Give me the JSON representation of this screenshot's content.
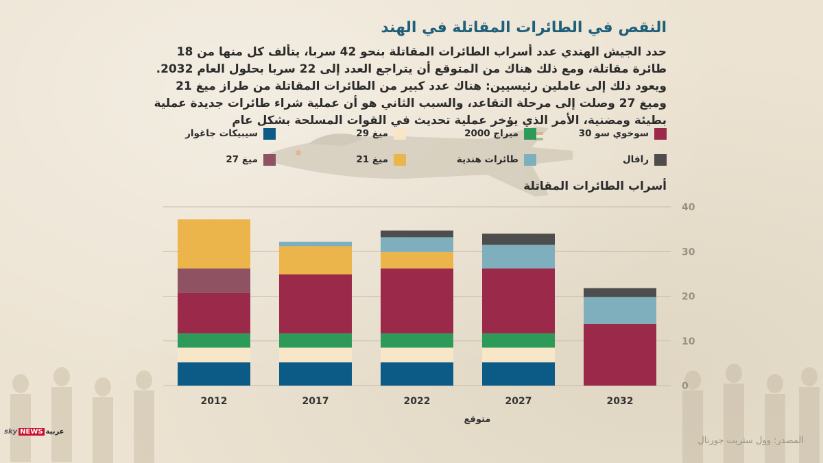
{
  "header": {
    "title": "النقص في الطائرات المقاتلة في الهند",
    "description": "حدد الجيش الهندي عدد أسراب الطائرات المقاتلة بنحو 42 سربا، يتألف كل منها من 18 طائرة مقاتلة، ومع ذلك هناك من المتوقع أن يتراجع العدد إلى 22 سربا بحلول العام 2032. ويعود ذلك إلى عاملين رئيسيين: هناك عدد كبير من الطائرات المقاتلة من طراز ميغ 21 وميغ 27 وصلت إلى مرحلة التقاعد، والسبب الثاني هو أن عملية شراء طائرات جديدة عملية بطيئة ومضنية، الأمر الذي يؤخر عملية تحديث في القوات المسلحة بشكل عام"
  },
  "legend": [
    {
      "label": "سوخوي سو 30",
      "color": "#9b2a4a"
    },
    {
      "label": "ميراج 2000",
      "color": "#2e9a5a"
    },
    {
      "label": "ميغ 29",
      "color": "#f7e6c8"
    },
    {
      "label": "سيبيكات جاغوار",
      "color": "#0c5a86"
    },
    {
      "label": "رافال",
      "color": "#4d4d4d"
    },
    {
      "label": "طائرات هندية",
      "color": "#7fafbd"
    },
    {
      "label": "ميغ 21",
      "color": "#ebb54b"
    },
    {
      "label": "ميغ 27",
      "color": "#8e5262"
    }
  ],
  "chart_data": {
    "type": "bar",
    "stacked": true,
    "title": "أسراب الطائرات المقاتلة",
    "categories": [
      "2012",
      "2017",
      "2022",
      "2027",
      "2032"
    ],
    "x_annotation": {
      "text": "متوقع",
      "applies_to": [
        "2027"
      ]
    },
    "ylim": [
      0,
      40
    ],
    "yticks": [
      0,
      10,
      20,
      30,
      40
    ],
    "grid": true,
    "series": [
      {
        "name": "سيبيكات جاغوار",
        "color": "#0c5a86",
        "values": [
          5.2,
          5.2,
          5.2,
          5.2,
          0
        ]
      },
      {
        "name": "ميغ 29",
        "color": "#f7e6c8",
        "values": [
          3.3,
          3.3,
          3.3,
          3.3,
          0
        ]
      },
      {
        "name": "ميراج 2000",
        "color": "#2e9a5a",
        "values": [
          3.2,
          3.2,
          3.2,
          3.2,
          0
        ]
      },
      {
        "name": "سوخوي سو 30",
        "color": "#9b2a4a",
        "values": [
          9,
          13.2,
          14.5,
          14.5,
          13.8
        ]
      },
      {
        "name": "ميغ 27",
        "color": "#8e5262",
        "values": [
          5.5,
          0,
          0,
          0,
          0
        ]
      },
      {
        "name": "ميغ 21",
        "color": "#ebb54b",
        "values": [
          11,
          6.3,
          3.7,
          0,
          0
        ]
      },
      {
        "name": "طائرات هندية",
        "color": "#7fafbd",
        "values": [
          0,
          1.0,
          3.3,
          5.3,
          6.0
        ]
      },
      {
        "name": "رافال",
        "color": "#4d4d4d",
        "values": [
          0,
          0,
          1.5,
          2.5,
          2.0
        ]
      }
    ]
  },
  "branding": {
    "sky": "sky",
    "news": "NEWS",
    "arabia": "عربية"
  },
  "source": "المصدر: وول ستريت جورنال"
}
